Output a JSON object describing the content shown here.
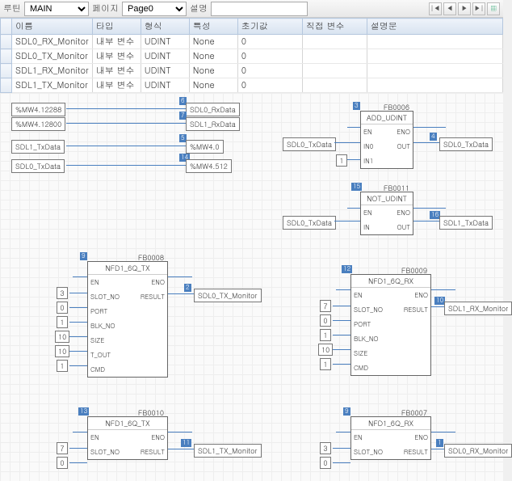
{
  "toolbar": {
    "label_routine": "루틴",
    "routine": "MAIN",
    "label_page": "페이지",
    "page": "Page0",
    "label_desc": "설명"
  },
  "columns": [
    "이름",
    "타입",
    "형식",
    "특성",
    "초기값",
    "직접 변수",
    "설명문"
  ],
  "rows": [
    [
      "SDL0_RX_Monitor",
      "내부 변수",
      "UDINT",
      "None",
      "0",
      "",
      ""
    ],
    [
      "SDL0_TX_Monitor",
      "내부 변수",
      "UDINT",
      "None",
      "0",
      "",
      ""
    ],
    [
      "SDL1_RX_Monitor",
      "내부 변수",
      "UDINT",
      "None",
      "0",
      "",
      ""
    ],
    [
      "SDL1_TX_Monitor",
      "내부 변수",
      "UDINT",
      "None",
      "0",
      "",
      ""
    ]
  ],
  "tags": {
    "mw4_12288": "%MW4.12288",
    "mw4_12800": "%MW4.12800",
    "sdl1_txdata": "SDL1_TxData",
    "sdl0_txdata": "SDL0_TxData",
    "sdl0_rxdata": "SDL0_RxData",
    "sdl1_rxdata": "SDL1_RxData",
    "mw4_0": "%MW4.0",
    "mw4_512": "%MW4.512",
    "sdl0_tx_mon": "SDL0_TX_Monitor",
    "sdl1_tx_mon": "SDL1_TX_Monitor",
    "sdl1_rx_mon": "SDL1_RX_Monitor",
    "sdl0_rx_mon": "SDL0_RX_Monitor"
  },
  "fb": {
    "add_udint": {
      "instance": "FB0006",
      "type": "ADD_UDINT",
      "pins_l": [
        "EN",
        "IN0",
        "IN1"
      ],
      "pins_r": [
        "ENO",
        "OUT",
        ""
      ],
      "num": "3"
    },
    "not_udint": {
      "instance": "FB0011",
      "type": "NOT_UDINT",
      "pins_l": [
        "EN",
        "IN"
      ],
      "pins_r": [
        "ENO",
        "OUT"
      ],
      "num": "15"
    },
    "fb0008": {
      "instance": "FB0008",
      "type": "NFD1_6Q_TX",
      "pins_l": [
        "EN",
        "SLOT_NO",
        "PORT",
        "BLK_NO",
        "SIZE",
        "T_OUT",
        "CMD"
      ],
      "pins_r": [
        "ENO",
        "RESULT",
        "",
        "",
        "",
        "",
        ""
      ],
      "num": "9",
      "pin_result": "2"
    },
    "fb0009": {
      "instance": "FB0009",
      "type": "NFD1_6Q_RX",
      "pins_l": [
        "EN",
        "SLOT_NO",
        "PORT",
        "BLK_NO",
        "SIZE",
        "CMD"
      ],
      "pins_r": [
        "ENO",
        "RESULT",
        "",
        "",
        "",
        ""
      ],
      "num": "12",
      "pin_result": "10"
    },
    "fb0010": {
      "instance": "FB0010",
      "type": "NFD1_6Q_TX",
      "pins_l": [
        "EN",
        "SLOT_NO"
      ],
      "pins_r": [
        "ENO",
        "RESULT"
      ],
      "num": "13",
      "pin_result": "11"
    },
    "fb0007": {
      "instance": "FB0007",
      "type": "NFD1_6Q_RX",
      "pins_l": [
        "EN",
        "SLOT_NO"
      ],
      "pins_r": [
        "ENO",
        "RESULT"
      ],
      "num": "9",
      "pin_result": "1"
    }
  },
  "lits": {
    "n3": "3",
    "n0": "0",
    "n1": "1",
    "n10": "10",
    "n7": "7"
  },
  "pins": {
    "p6": "6",
    "p7": "7",
    "p5": "5",
    "p14": "14",
    "p3": "3",
    "p4": "4",
    "p15": "15",
    "p16": "16",
    "p9": "9",
    "p2": "2",
    "p12": "12",
    "p10": "10",
    "p13": "13",
    "p11": "11",
    "p1": "1"
  }
}
